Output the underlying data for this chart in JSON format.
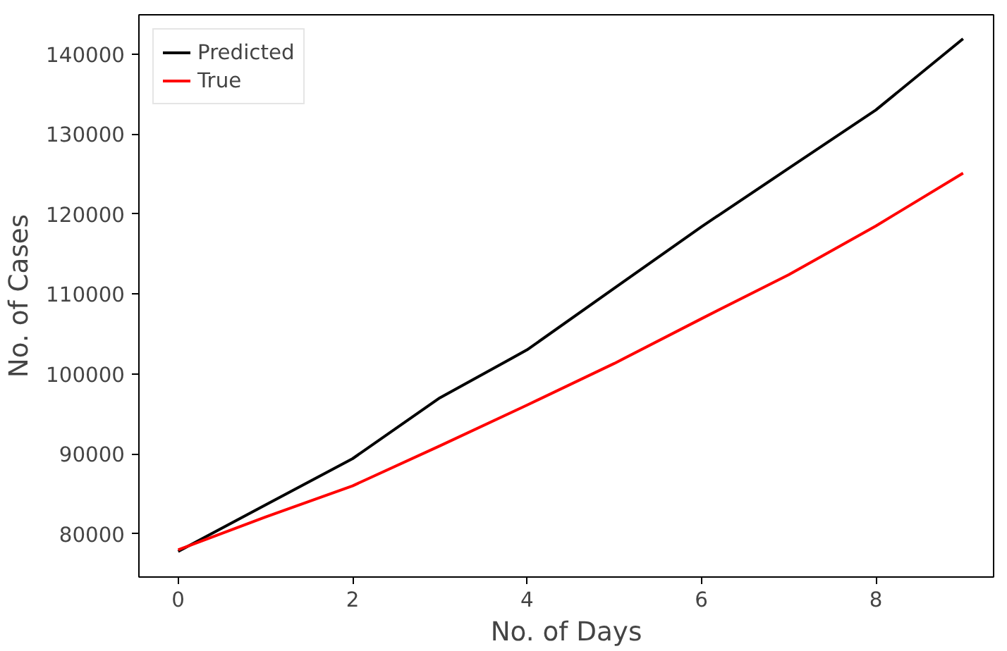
{
  "chart_data": {
    "type": "line",
    "xlabel": "No. of Days",
    "ylabel": "No. of Cases",
    "x": [
      0,
      1,
      2,
      3,
      4,
      5,
      6,
      7,
      8,
      9
    ],
    "series": [
      {
        "name": "Predicted",
        "color": "#000000",
        "values": [
          77800,
          83600,
          89400,
          97000,
          103000,
          110700,
          118400,
          125700,
          133000,
          141900
        ]
      },
      {
        "name": "True",
        "color": "#ff0000",
        "values": [
          78000,
          82100,
          86000,
          91000,
          96100,
          101300,
          106900,
          112400,
          118500,
          125100
        ]
      }
    ],
    "xlim": [
      -0.45,
      9.35
    ],
    "ylim": [
      74600,
      144900
    ],
    "xticks": [
      0,
      2,
      4,
      6,
      8
    ],
    "yticks": [
      80000,
      90000,
      100000,
      110000,
      120000,
      130000,
      140000
    ],
    "legend": "top left",
    "grid": false
  }
}
